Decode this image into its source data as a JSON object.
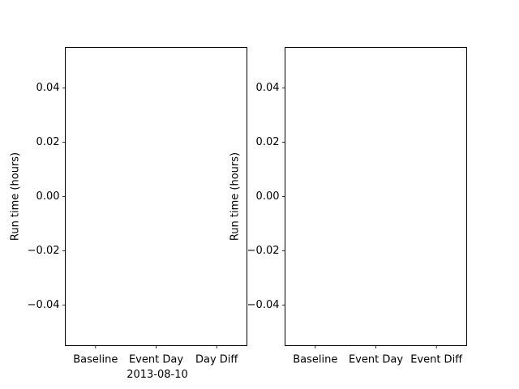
{
  "chart_data": [
    {
      "type": "bar",
      "categories": [
        "Baseline",
        "Event Day",
        "Day Diff"
      ],
      "series": [],
      "title": "",
      "xlabel": "2013-08-10",
      "ylabel": "Run time (hours)",
      "ylim": [
        -0.055,
        0.055
      ],
      "yticks": [
        -0.04,
        -0.02,
        0.0,
        0.02,
        0.04
      ],
      "ytick_labels": [
        "−0.04",
        "−0.02",
        "0.00",
        "0.02",
        "0.04"
      ],
      "grid": false
    },
    {
      "type": "bar",
      "categories": [
        "Baseline",
        "Event Day",
        "Event Diff"
      ],
      "series": [],
      "title": "",
      "xlabel": "",
      "ylabel": "Run time (hours)",
      "ylim": [
        -0.055,
        0.055
      ],
      "yticks": [
        -0.04,
        -0.02,
        0.0,
        0.02,
        0.04
      ],
      "ytick_labels": [
        "−0.04",
        "−0.02",
        "0.00",
        "0.02",
        "0.04"
      ],
      "grid": false
    }
  ]
}
